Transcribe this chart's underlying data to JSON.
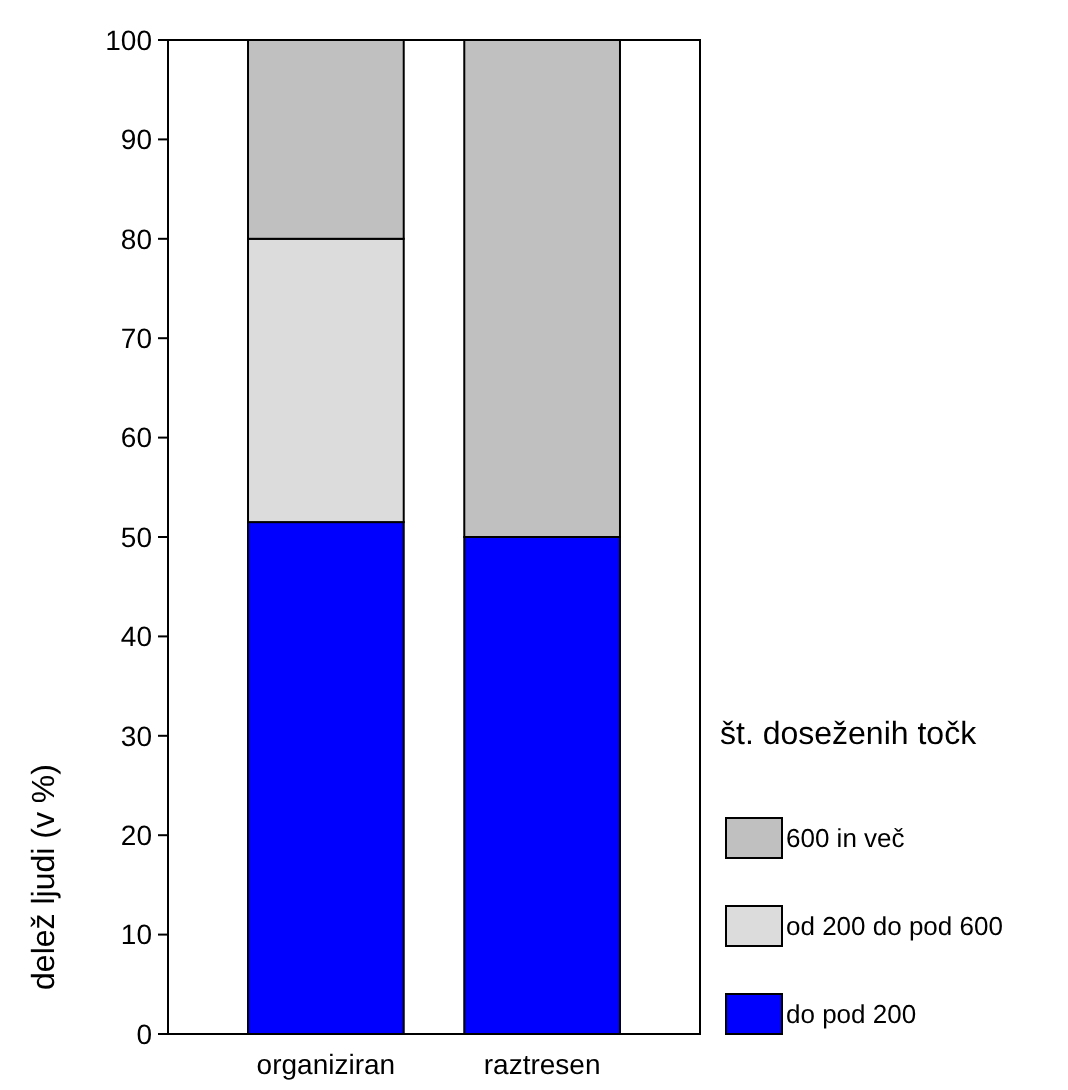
{
  "chart_data": {
    "type": "bar",
    "stacked": true,
    "ylabel": "delež ljudi (v %)",
    "legend_title": "št. doseženih točk",
    "categories": [
      "organiziran",
      "raztresen"
    ],
    "series": [
      {
        "name": "do pod 200",
        "color": "#0000ff",
        "values": [
          51.5,
          50
        ]
      },
      {
        "name": "od 200 do pod 600",
        "color": "#dcdcdc",
        "values": [
          28.5,
          0
        ]
      },
      {
        "name": "600 in več",
        "color": "#c0c0c0",
        "values": [
          20,
          50
        ]
      }
    ],
    "ylim": [
      0,
      100
    ],
    "yticks": [
      0,
      10,
      20,
      30,
      40,
      50,
      60,
      70,
      80,
      90,
      100
    ],
    "legend": "right"
  }
}
